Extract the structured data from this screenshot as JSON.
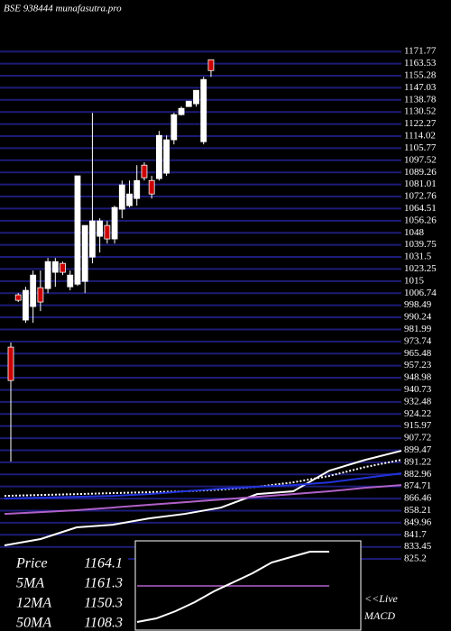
{
  "chart_data": {
    "type": "candlestick",
    "title": "BSE 938444  munafasutra.pro",
    "ylim": [
      776,
      1207
    ],
    "yticks": [
      1171.77,
      1163.53,
      1155.28,
      1147.03,
      1138.78,
      1130.52,
      1122.27,
      1114.02,
      1105.77,
      1097.52,
      1089.26,
      1081.01,
      1072.76,
      1064.51,
      1056.26,
      1048,
      1039.75,
      1031.5,
      1023.25,
      1015,
      1006.74,
      998.49,
      990.24,
      981.99,
      973.74,
      965.48,
      957.23,
      948.98,
      940.73,
      932.48,
      924.22,
      915.97,
      907.72,
      899.47,
      891.22,
      882.96,
      874.71,
      866.46,
      858.21,
      849.96,
      841.7,
      833.45,
      825.2
    ],
    "grid": true,
    "grid_color": "#1c1c78",
    "up_color": "#ffffff",
    "down_color": "#cc0000",
    "open": [
      969.9,
      1005.6,
      988.4,
      997.6,
      1010.5,
      1009.9,
      1021.0,
      1027.1,
      1011.1,
      1012.9,
      1014.8,
      1031.4,
      1045.6,
      1053.0,
      1043.8,
      1064.1,
      1066.5,
      1071.4,
      1094.2,
      1083.7,
      1085.0,
      1088.7,
      1111.5,
      1128.7,
      1134.2,
      1136.1,
      1110.2,
      1166.2
    ],
    "high": [
      973.0,
      1006.8,
      1011.1,
      1022.2,
      1022.2,
      1030.8,
      1030.8,
      1028.3,
      1022.2,
      1086.9,
      1053.0,
      1129.9,
      1057.9,
      1056.1,
      1066.5,
      1083.7,
      1083.7,
      1094.2,
      1096.1,
      1086.9,
      1117.6,
      1114.5,
      1129.9,
      1134.2,
      1137.9,
      1145.3,
      1154.5,
      1166.2
    ],
    "low": [
      891.7,
      1000.7,
      986.5,
      986.5,
      994.5,
      1006.8,
      1011.1,
      1019.1,
      1008.7,
      1011.7,
      1006.8,
      1027.1,
      1034.5,
      1040.7,
      1040.7,
      1057.9,
      1065.3,
      1066.5,
      1083.7,
      1071.4,
      1083.7,
      1086.9,
      1108.4,
      1128.1,
      1134.2,
      1134.2,
      1108.4,
      1154.5
    ],
    "close": [
      947.1,
      1001.9,
      1008.7,
      1019.1,
      1000.7,
      1028.3,
      1028.3,
      1021.0,
      1019.1,
      1086.9,
      1053.0,
      1056.1,
      1056.1,
      1043.8,
      1065.3,
      1080.7,
      1074.5,
      1083.7,
      1085.6,
      1074.5,
      1114.5,
      1111.5,
      1128.7,
      1133.0,
      1137.9,
      1145.3,
      1152.7,
      1158.8
    ],
    "lines": [
      {
        "color": "#ffffff",
        "style": "solid",
        "values": [
          834.5,
          838.8,
          846.8,
          848.6,
          852.9,
          856.0,
          860.3,
          869.5,
          871.4,
          885.5,
          892.9,
          899.1
        ]
      },
      {
        "color": "#ffffff",
        "style": "dotted",
        "values": [
          868.3,
          868.9,
          869.5,
          870.2,
          870.8,
          871.4,
          872.6,
          874.5,
          877.5,
          881.9,
          888.0,
          892.9
        ]
      },
      {
        "color": "#2233dd",
        "style": "solid",
        "values": [
          866.5,
          867.1,
          867.7,
          868.3,
          869.5,
          871.4,
          873.2,
          874.5,
          875.7,
          877.5,
          880.6,
          883.7
        ]
      },
      {
        "color": "#b060c8",
        "style": "solid",
        "values": [
          856.0,
          857.2,
          858.5,
          860.3,
          862.2,
          864.0,
          865.8,
          867.7,
          869.5,
          871.4,
          873.8,
          875.7
        ]
      }
    ],
    "legend": [
      {
        "label": "Price",
        "value": 1164.1
      },
      {
        "label": "5MA",
        "value": 1161.3
      },
      {
        "label": "12MA",
        "value": 1150.3
      },
      {
        "label": "50MA",
        "value": 1108.3
      }
    ],
    "live_label": "<<Live",
    "macd": {
      "label": "MACD",
      "ylim": [
        -50,
        50
      ],
      "series": [
        {
          "color": "#ffffff",
          "values": [
            -40,
            -36,
            -28,
            -18,
            -6,
            4,
            14,
            26,
            32,
            38,
            38
          ]
        },
        {
          "color": "#b060c8",
          "values": [
            0,
            0,
            0,
            0,
            0,
            0,
            0,
            0,
            0,
            0,
            0
          ]
        }
      ]
    }
  }
}
